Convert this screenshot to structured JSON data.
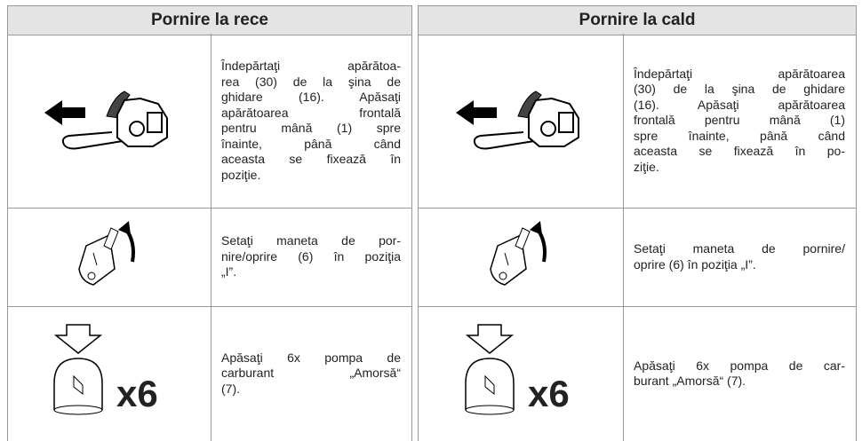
{
  "tables": [
    {
      "header": "Pornire la rece",
      "rows": [
        {
          "lines": [
            "Îndepărtaţi apărătoa-",
            "rea (30) de la şina de",
            "ghidare (16). Apăsaţi",
            "apărătoarea frontală",
            "pentru mână (1) spre",
            "înainte, până când",
            "aceasta se fixează în",
            "poziţie."
          ]
        },
        {
          "lines": [
            "Setaţi maneta de por-",
            "nire/oprire (6) în poziţia",
            "„I”."
          ]
        },
        {
          "icon_label": "x6",
          "lines": [
            "Apăsaţi 6x pompa de",
            "carburant „Amorsă“",
            "(7)."
          ]
        }
      ]
    },
    {
      "header": "Pornire la cald",
      "rows": [
        {
          "lines": [
            "Îndepărtaţi apărătoarea",
            "(30) de la şina de ghidare",
            "(16). Apăsaţi apărătoarea",
            "frontală pentru mână (1)",
            "spre înainte, până când",
            "aceasta se fixează în po-",
            "ziţie."
          ]
        },
        {
          "lines": [
            "Setaţi maneta de pornire/",
            "oprire (6) în poziţia „I”."
          ]
        },
        {
          "icon_label": "x6",
          "lines": [
            "Apăsaţi 6x pompa de car-",
            "burant „Amorsă“ (7)."
          ]
        }
      ]
    }
  ]
}
